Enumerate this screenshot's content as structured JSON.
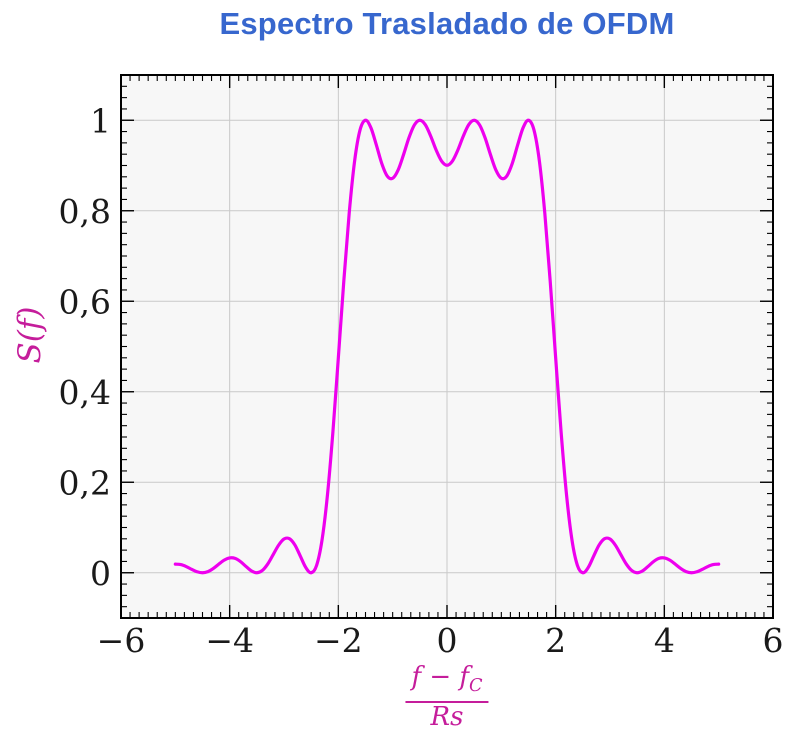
{
  "colors": {
    "title": "#3767ce",
    "curve": "#ee00ee",
    "axis_label": "#c51d9b",
    "grid": "#c9c9c9",
    "plot_bg": "#f7f7f7",
    "frame": "#000000",
    "tick_label": "#1a1a1a"
  },
  "xlabel_parts": {
    "num_main": "f − f",
    "num_sub": "C",
    "den": "Rs"
  },
  "chart_data": {
    "type": "line",
    "title": "Espectro Trasladado de OFDM",
    "ylabel": "S(f)",
    "xlabel": "(f − f_C) / Rs",
    "xlim": [
      -6,
      6
    ],
    "ylim": [
      -0.1,
      1.1
    ],
    "grid": true,
    "legend_position": "none",
    "x_major_ticks": [
      -6,
      -4,
      -2,
      0,
      2,
      4,
      6
    ],
    "x_tick_labels": [
      "−6",
      "−4",
      "−2",
      "0",
      "2",
      "4",
      "6"
    ],
    "y_major_ticks": [
      0,
      0.2,
      0.4,
      0.6,
      0.8,
      1
    ],
    "y_tick_labels": [
      "0",
      "0,2",
      "0,4",
      "0,6",
      "0,8",
      "1"
    ],
    "x_major_step": 2,
    "y_major_step": 0.2,
    "x_minor_per_major": 12,
    "y_minor_per_major": 8,
    "series": [
      {
        "name": "S(f)",
        "color": "#ee00ee",
        "x": [
          -5,
          -4.9,
          -4.8,
          -4.7,
          -4.6,
          -4.5,
          -4.4,
          -4.3,
          -4.2,
          -4.1,
          -4,
          -3.9,
          -3.8,
          -3.7,
          -3.6,
          -3.5,
          -3.4,
          -3.3,
          -3.2,
          -3.1,
          -3,
          -2.9,
          -2.8,
          -2.7,
          -2.6,
          -2.5,
          -2.4,
          -2.3,
          -2.2,
          -2.1,
          -2,
          -1.9,
          -1.8,
          -1.7,
          -1.6,
          -1.5,
          -1.4,
          -1.3,
          -1.2,
          -1.1,
          -1,
          -0.9,
          -0.8,
          -0.7,
          -0.6,
          -0.5,
          -0.4,
          -0.3,
          -0.2,
          -0.1,
          0,
          0.1,
          0.2,
          0.3,
          0.4,
          0.5,
          0.6,
          0.7,
          0.8,
          0.9,
          1,
          1.1,
          1.2,
          1.3,
          1.4,
          1.5,
          1.6,
          1.7,
          1.8,
          1.9,
          2,
          2.1,
          2.2,
          2.3,
          2.4,
          2.5,
          2.6,
          2.7,
          2.8,
          2.9,
          3,
          3.1,
          3.2,
          3.3,
          3.4,
          3.5,
          3.6,
          3.7,
          3.8,
          3.9,
          4,
          4.1,
          4.2,
          4.3,
          4.4,
          4.5,
          4.6,
          4.7,
          4.8,
          4.9,
          5
        ],
        "y": [
          0.019,
          0.018,
          0.0137,
          0.0076,
          0.0022,
          0,
          0.0025,
          0.0095,
          0.019,
          0.0279,
          0.0328,
          0.0317,
          0.0246,
          0.0139,
          0.0041,
          0,
          0.0049,
          0.0192,
          0.0399,
          0.0608,
          0.0745,
          0.0753,
          0.0615,
          0.0369,
          0.0118,
          0,
          0.0164,
          0.0724,
          0.1722,
          0.311,
          0.4748,
          0.6434,
          0.7947,
          0.9101,
          0.9788,
          1,
          0.9833,
          0.9451,
          0.9042,
          0.8767,
          0.8718,
          0.89,
          0.9239,
          0.9614,
          0.9897,
          1,
          0.9902,
          0.965,
          0.9343,
          0.9099,
          0.9006,
          0.9099,
          0.9343,
          0.965,
          0.9902,
          1,
          0.9897,
          0.9614,
          0.9239,
          0.89,
          0.8718,
          0.8767,
          0.9042,
          0.9451,
          0.9833,
          1,
          0.9788,
          0.9101,
          0.7947,
          0.6434,
          0.4748,
          0.311,
          0.1722,
          0.0724,
          0.0164,
          0,
          0.0118,
          0.0369,
          0.0615,
          0.0753,
          0.0745,
          0.0608,
          0.0399,
          0.0192,
          0.0049,
          0,
          0.0041,
          0.0139,
          0.0246,
          0.0317,
          0.0328,
          0.0279,
          0.019,
          0.0095,
          0.0025,
          0,
          0.0022,
          0.0076,
          0.0137,
          0.018,
          0.019
        ]
      }
    ]
  }
}
